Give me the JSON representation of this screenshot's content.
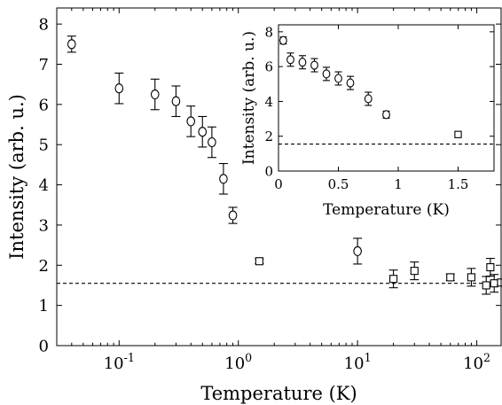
{
  "chart_data": [
    {
      "type": "scatter",
      "panel": "main",
      "xlabel": "Temperature (K)",
      "ylabel": "Intensity (arb. u.)",
      "xscale": "log",
      "xlim": [
        0.03,
        160
      ],
      "ylim": [
        0,
        8.4
      ],
      "yticks": [
        0,
        1,
        2,
        3,
        4,
        5,
        6,
        7,
        8
      ],
      "xticks": [
        0.1,
        1,
        10,
        100
      ],
      "xtick_labels": [
        {
          "base": "10",
          "exp": "-1"
        },
        {
          "base": "10",
          "exp": "0"
        },
        {
          "base": "10",
          "exp": "1"
        },
        {
          "base": "10",
          "exp": "2"
        }
      ],
      "grid": false,
      "reference_line": 1.55,
      "series": [
        {
          "marker": "circle",
          "points": [
            {
              "x": 0.04,
              "y": 7.5,
              "err": 0.2
            },
            {
              "x": 0.1,
              "y": 6.4,
              "err": 0.38
            },
            {
              "x": 0.2,
              "y": 6.25,
              "err": 0.38
            },
            {
              "x": 0.3,
              "y": 6.08,
              "err": 0.38
            },
            {
              "x": 0.4,
              "y": 5.58,
              "err": 0.38
            },
            {
              "x": 0.5,
              "y": 5.32,
              "err": 0.38
            },
            {
              "x": 0.6,
              "y": 5.06,
              "err": 0.38
            },
            {
              "x": 0.75,
              "y": 4.15,
              "err": 0.38
            },
            {
              "x": 0.9,
              "y": 3.24,
              "err": 0.2
            },
            {
              "x": 10,
              "y": 2.35,
              "err": 0.32
            }
          ]
        },
        {
          "marker": "square",
          "points": [
            {
              "x": 1.5,
              "y": 2.1,
              "err": 0.06
            },
            {
              "x": 20,
              "y": 1.66,
              "err": 0.22
            },
            {
              "x": 30,
              "y": 1.86,
              "err": 0.22
            },
            {
              "x": 60,
              "y": 1.7,
              "err": 0.08
            },
            {
              "x": 90,
              "y": 1.7,
              "err": 0.22
            },
            {
              "x": 120,
              "y": 1.5,
              "err": 0.22
            },
            {
              "x": 130,
              "y": 1.95,
              "err": 0.22
            },
            {
              "x": 140,
              "y": 1.55,
              "err": 0.22
            },
            {
              "x": 160,
              "y": 1.57,
              "err": 0.06
            }
          ]
        }
      ]
    },
    {
      "type": "scatter",
      "panel": "inset",
      "xlabel": "Temperature (K)",
      "ylabel": "Intensity (arb. u.)",
      "xscale": "linear",
      "xlim": [
        0,
        1.8
      ],
      "ylim": [
        0,
        8.4
      ],
      "yticks": [
        0,
        2,
        4,
        6,
        8
      ],
      "xticks": [
        0,
        0.5,
        1,
        1.5
      ],
      "xtick_labels": [
        "0",
        "0.5",
        "1",
        "1.5"
      ],
      "grid": false,
      "reference_line": 1.55,
      "series": [
        {
          "marker": "circle",
          "points": [
            {
              "x": 0.04,
              "y": 7.5,
              "err": 0.2
            },
            {
              "x": 0.1,
              "y": 6.4,
              "err": 0.38
            },
            {
              "x": 0.2,
              "y": 6.25,
              "err": 0.38
            },
            {
              "x": 0.3,
              "y": 6.08,
              "err": 0.38
            },
            {
              "x": 0.4,
              "y": 5.58,
              "err": 0.38
            },
            {
              "x": 0.5,
              "y": 5.32,
              "err": 0.38
            },
            {
              "x": 0.6,
              "y": 5.06,
              "err": 0.38
            },
            {
              "x": 0.75,
              "y": 4.15,
              "err": 0.38
            },
            {
              "x": 0.9,
              "y": 3.24,
              "err": 0.2
            }
          ]
        },
        {
          "marker": "square",
          "points": [
            {
              "x": 1.5,
              "y": 2.1,
              "err": 0.06
            }
          ]
        }
      ]
    }
  ]
}
